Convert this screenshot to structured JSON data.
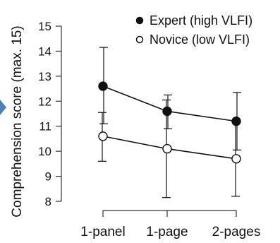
{
  "chart_data": {
    "type": "line",
    "title": "",
    "xlabel": "",
    "ylabel": "Comprehension score (max. 15)",
    "categories": [
      "1-panel",
      "1-page",
      "2-pages"
    ],
    "ylim": [
      8,
      15
    ],
    "yticks": [
      8,
      9,
      10,
      11,
      12,
      13,
      14,
      15
    ],
    "grid": false,
    "legend_position": "top-right",
    "series": [
      {
        "name": "Expert (high VLFI)",
        "marker": "filled-circle",
        "color": "#111111",
        "values": [
          12.6,
          11.6,
          11.2
        ],
        "error_low": [
          11.1,
          10.9,
          10.05
        ],
        "error_high": [
          14.15,
          12.25,
          12.35
        ]
      },
      {
        "name": "Novice (low VLFI)",
        "marker": "open-circle",
        "color": "#111111",
        "values": [
          10.6,
          10.1,
          9.7
        ],
        "error_low": [
          9.6,
          8.15,
          8.2
        ],
        "error_high": [
          11.55,
          12.05,
          11.2
        ]
      }
    ],
    "edge_marker_color": "#4a7fc1"
  }
}
